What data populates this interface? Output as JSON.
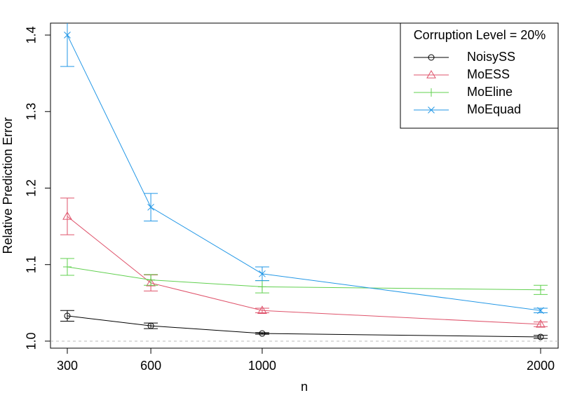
{
  "chart_data": {
    "type": "line",
    "xlabel": "n",
    "ylabel": "Relative Prediction Error",
    "x": [
      300,
      600,
      1000,
      2000
    ],
    "xlim": [
      239.6,
      2063
    ],
    "xticks": [
      300,
      600,
      1000,
      2000
    ],
    "ylim": [
      0.9908,
      1.4156
    ],
    "yticks": [
      {
        "value": 1,
        "label": "1.0"
      },
      1.1,
      1.2,
      1.3,
      1.4
    ],
    "reference_line": 1,
    "legend_title": "Corruption Level = 20%",
    "legend_position": "top-right",
    "series": [
      {
        "name": "NoisySS",
        "color": "#000000",
        "marker": "circle",
        "values": [
          1.033,
          1.02,
          1.01,
          1.0055
        ],
        "errors": [
          0.007,
          0.0037,
          0.001,
          0.002
        ]
      },
      {
        "name": "MoESS",
        "color": "#DF536B",
        "marker": "triangle",
        "values": [
          1.163,
          1.076,
          1.04,
          1.022
        ],
        "errors": [
          0.024,
          0.0105,
          0.003,
          0.003
        ]
      },
      {
        "name": "MoEline",
        "color": "#61D04F",
        "marker": "plus",
        "values": [
          1.097,
          1.08,
          1.071,
          1.067
        ],
        "errors": [
          0.011,
          0.007,
          0.008,
          0.006
        ]
      },
      {
        "name": "MoEquad",
        "color": "#2297E6",
        "marker": "cross",
        "values": [
          1.4,
          1.175,
          1.088,
          1.04
        ],
        "errors": [
          0.041,
          0.018,
          0.009,
          0.003
        ]
      }
    ]
  }
}
